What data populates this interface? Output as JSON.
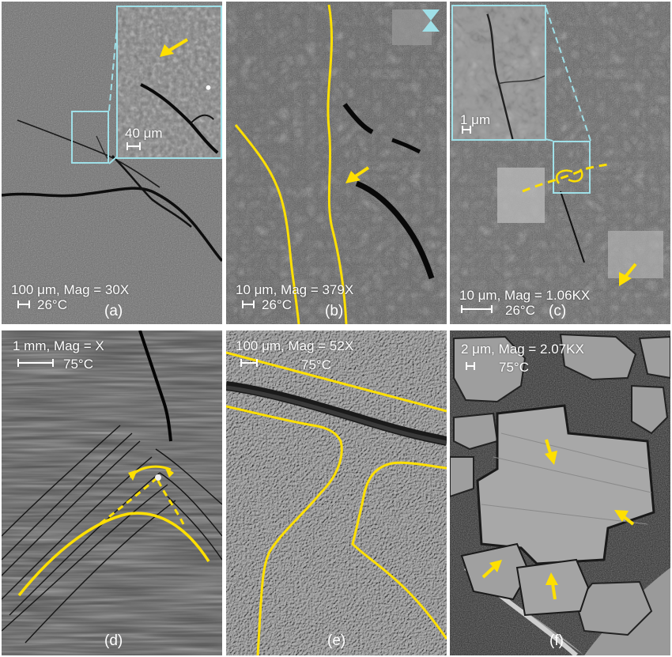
{
  "panels": {
    "a": {
      "scale": "100 μm, Mag = 30X",
      "temp": "26°C",
      "label": "(a)",
      "inset_scale": "40 μm"
    },
    "b": {
      "scale": "10 μm, Mag = 379X",
      "temp": "26°C",
      "label": "(b)"
    },
    "c": {
      "scale": "10 μm, Mag = 1.06KX",
      "temp": "26°C",
      "label": "(c)",
      "inset_scale": "1 μm"
    },
    "d": {
      "scale": "1 mm, Mag = X",
      "temp": "75°C",
      "label": "(d)"
    },
    "e": {
      "scale": "100 μm, Mag = 52X",
      "temp": "75°C",
      "label": "(e)"
    },
    "f": {
      "scale": "2 μm, Mag = 2.07KX",
      "temp": "75°C",
      "label": "(f)"
    }
  },
  "colors": {
    "annotation": "#ffe000",
    "inset": "#9fe0e8",
    "text": "#ffffff"
  }
}
